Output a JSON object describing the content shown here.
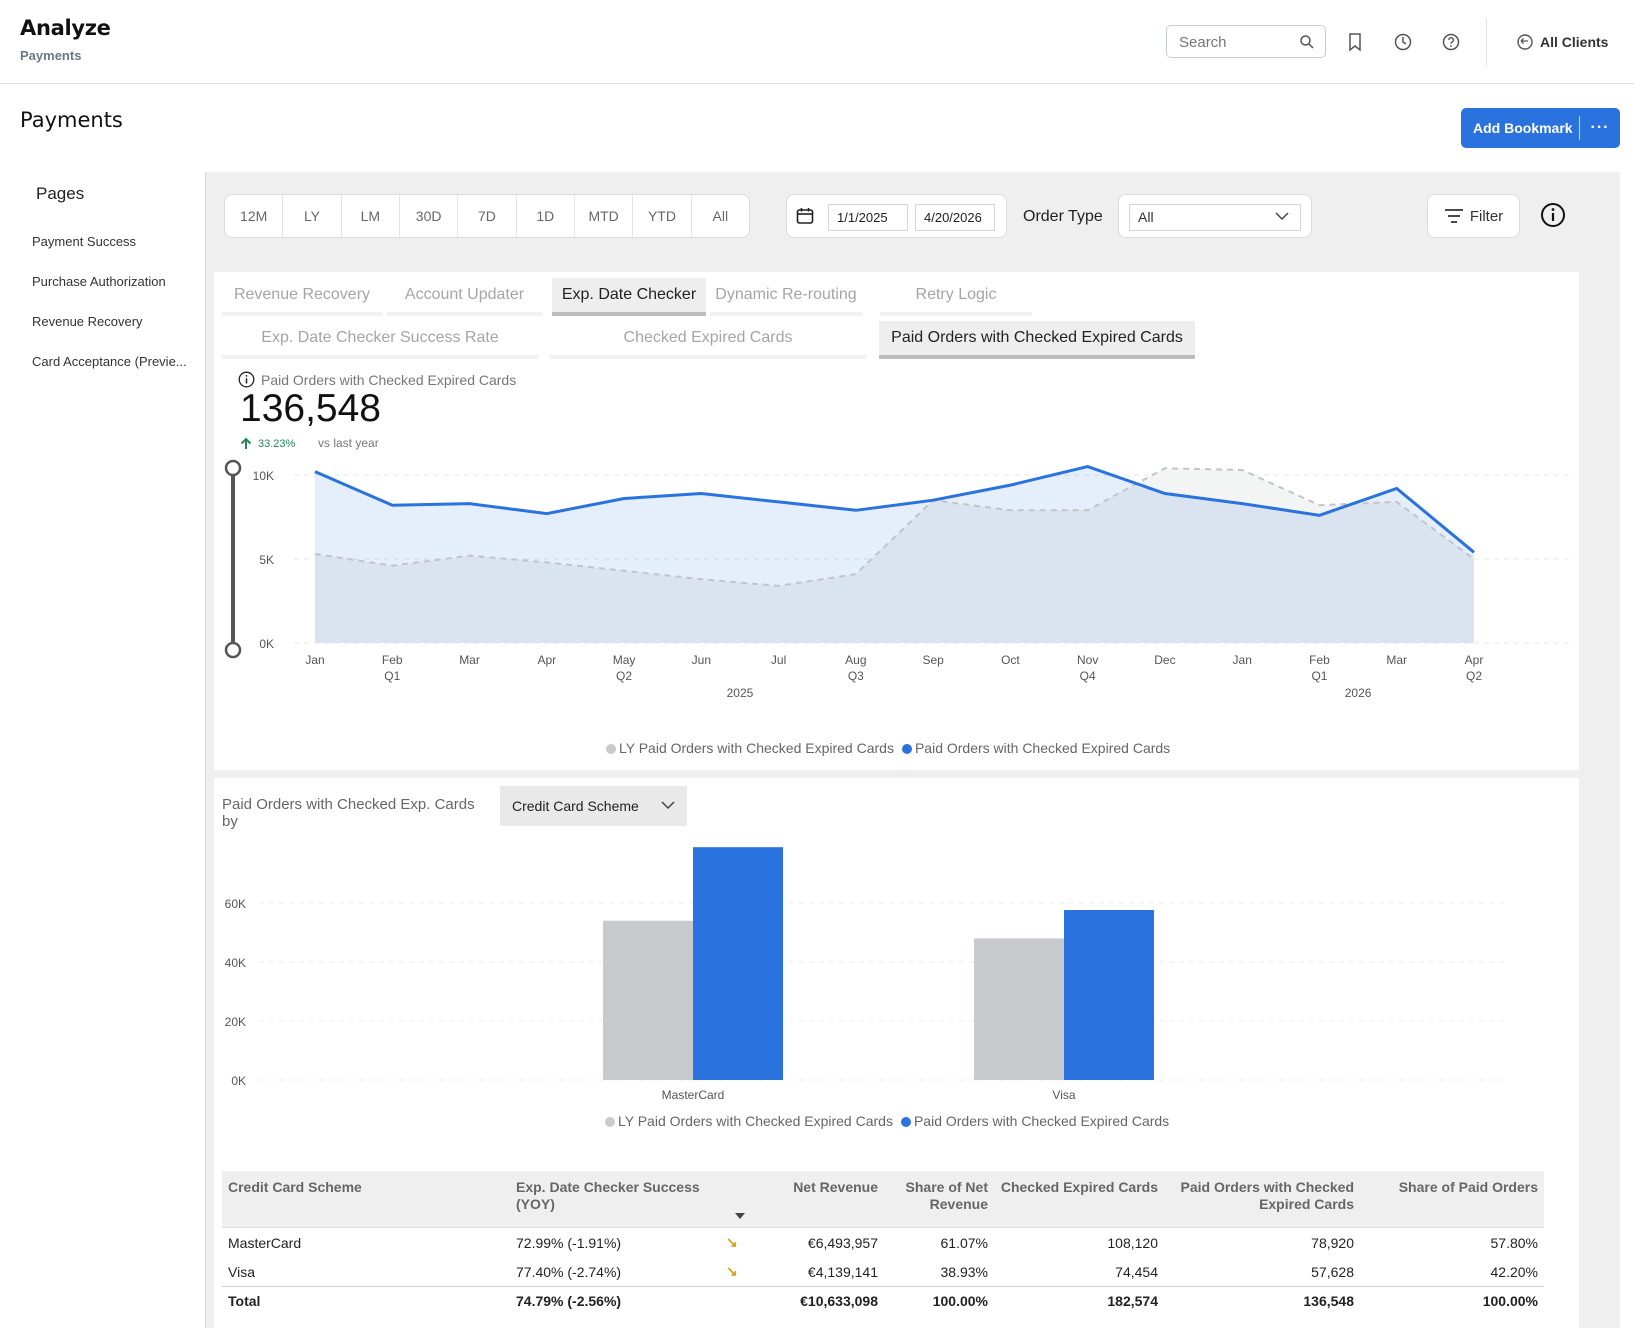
{
  "header": {
    "app_title": "Analyze",
    "app_subtitle": "Payments",
    "search_placeholder": "Search",
    "clients_label": "All Clients"
  },
  "page": {
    "title": "Payments",
    "bookmark_label": "Add Bookmark",
    "more_label": "···"
  },
  "sidebar": {
    "title": "Pages",
    "items": [
      {
        "label": "Payment Success"
      },
      {
        "label": "Purchase Authorization"
      },
      {
        "label": "Revenue Recovery"
      },
      {
        "label": "Card Acceptance (Previe..."
      }
    ]
  },
  "toolbar": {
    "periods": [
      "12M",
      "LY",
      "LM",
      "30D",
      "7D",
      "1D",
      "MTD",
      "YTD",
      "All"
    ],
    "date_from": "1/1/2025",
    "date_to": "4/20/2026",
    "order_type_label": "Order Type",
    "order_type_value": "All",
    "filter_label": "Filter"
  },
  "tabs": {
    "primary": [
      "Revenue Recovery",
      "Account Updater",
      "Exp. Date Checker",
      "Dynamic Re-routing",
      "Retry Logic"
    ],
    "primary_active": "Exp. Date Checker",
    "secondary": [
      "Exp. Date Checker Success Rate",
      "Checked Expired Cards",
      "Paid Orders with Checked Expired Cards"
    ],
    "secondary_active": "Paid Orders with Checked Expired Cards"
  },
  "kpi": {
    "label": "Paid Orders with Checked Expired Cards",
    "value": "136,548",
    "delta": "33.23%",
    "vs": "vs last year"
  },
  "colors": {
    "accent": "#2a72de",
    "ly_series": "#c8cace",
    "positive": "#27865b",
    "trend_down": "#d9a11a"
  },
  "chart_data": [
    {
      "type": "area",
      "x": [
        "Jan",
        "Feb",
        "Mar",
        "Apr",
        "May",
        "Jun",
        "Jul",
        "Aug",
        "Sep",
        "Oct",
        "Nov",
        "Dec",
        "Jan",
        "Feb",
        "Mar",
        "Apr"
      ],
      "quarter_labels": [
        "",
        "Q1",
        "",
        "",
        "Q2",
        "",
        "",
        "Q3",
        "",
        "",
        "Q4",
        "",
        "",
        "Q1",
        "",
        "Q2"
      ],
      "year_labels": [
        "2025",
        "2026"
      ],
      "yticks": [
        "0K",
        "5K",
        "10K"
      ],
      "ylim": [
        0,
        10000
      ],
      "series": [
        {
          "name": "LY Paid Orders with Checked Expired Cards",
          "values": [
            5300,
            4600,
            5200,
            4800,
            4300,
            3800,
            3400,
            4100,
            8500,
            7900,
            7900,
            10400,
            10300,
            8200,
            8400,
            5000
          ]
        },
        {
          "name": "Paid Orders with Checked Expired Cards",
          "values": [
            10200,
            8200,
            8300,
            7700,
            8600,
            8900,
            8400,
            7900,
            8500,
            9400,
            10500,
            8900,
            8300,
            7600,
            9200,
            5400
          ]
        }
      ],
      "legend": "bottom-center",
      "grid": true
    },
    {
      "type": "bar",
      "title": "Paid Orders with Checked Exp. Cards by",
      "dimension": "Credit Card Scheme",
      "categories": [
        "MasterCard",
        "Visa"
      ],
      "yticks": [
        "0K",
        "20K",
        "40K",
        "60K"
      ],
      "ylim": [
        0,
        80000
      ],
      "series": [
        {
          "name": "LY Paid Orders with Checked Expired Cards",
          "values": [
            54000,
            48000
          ]
        },
        {
          "name": "Paid Orders with Checked Expired Cards",
          "values": [
            78920,
            57628
          ]
        }
      ],
      "legend": "bottom-center",
      "grid": true
    }
  ],
  "table": {
    "headers": [
      "Credit Card Scheme",
      "Exp. Date Checker Success (YOY)",
      "",
      "Net Revenue",
      "Share of Net Revenue",
      "Checked Expired Cards",
      "Paid Orders with Checked Expired Cards",
      "Share of Paid Orders"
    ],
    "rows": [
      [
        "MasterCard",
        "72.99% (-1.91%)",
        "↘",
        "€6,493,957",
        "61.07%",
        "108,120",
        "78,920",
        "57.80%"
      ],
      [
        "Visa",
        "77.40% (-2.74%)",
        "↘",
        "€4,139,141",
        "38.93%",
        "74,454",
        "57,628",
        "42.20%"
      ]
    ],
    "total": [
      "Total",
      "74.79% (-2.56%)",
      "",
      "€10,633,098",
      "100.00%",
      "182,574",
      "136,548",
      "100.00%"
    ]
  }
}
